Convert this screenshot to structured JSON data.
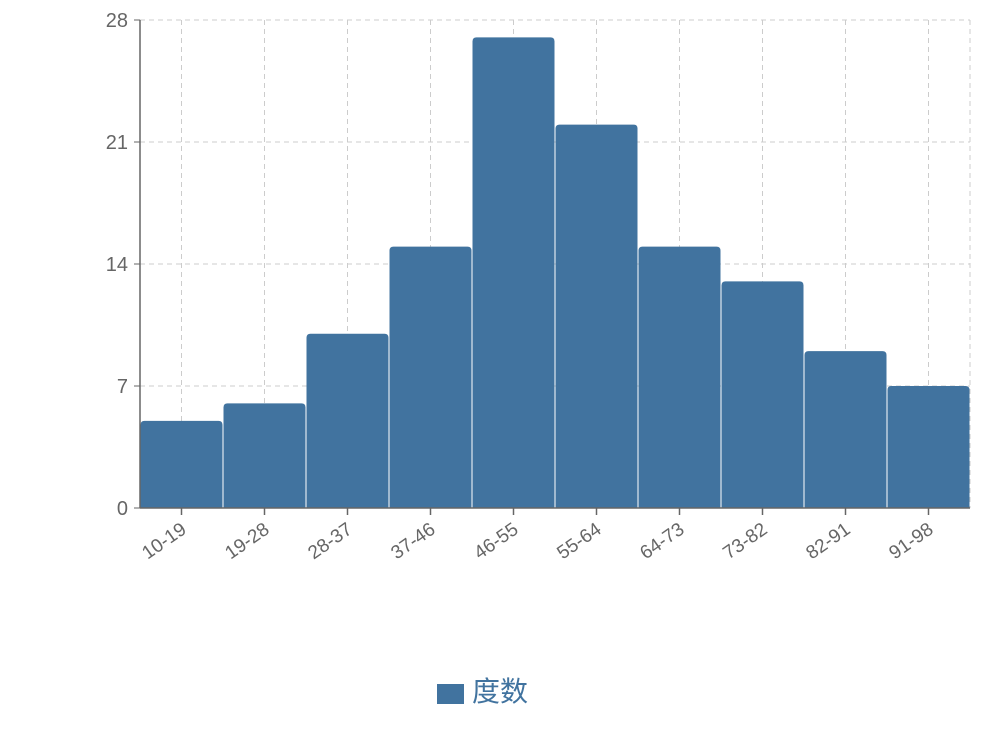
{
  "chart_data": {
    "type": "bar",
    "categories": [
      "10-19",
      "19-28",
      "28-37",
      "37-46",
      "46-55",
      "55-64",
      "64-73",
      "73-82",
      "82-91",
      "91-98"
    ],
    "series": [
      {
        "name": "度数",
        "values": [
          5,
          6,
          10,
          15,
          27,
          22,
          15,
          13,
          9,
          7
        ]
      }
    ],
    "yticks": [
      0,
      7,
      14,
      21,
      28
    ],
    "ylim": [
      0,
      28
    ],
    "grid": true,
    "legend": "bottom",
    "colors": {
      "bar": "#41739f",
      "grid": "#cccccc",
      "axis": "#666666",
      "legend_text": "#41739f"
    }
  }
}
